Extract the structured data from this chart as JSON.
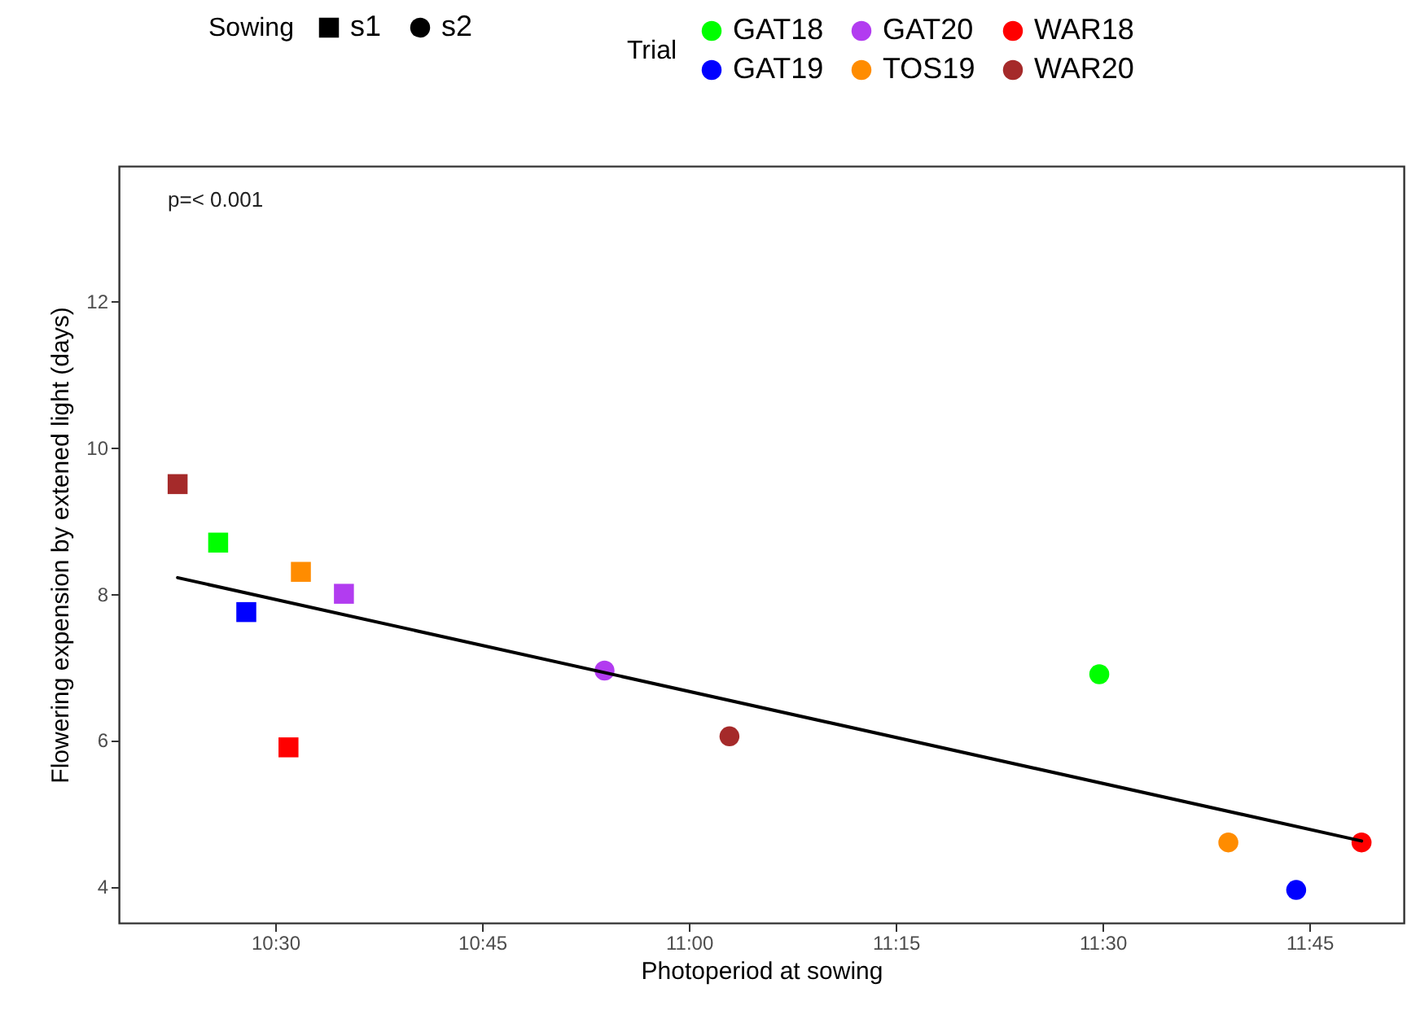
{
  "chart_data": {
    "type": "scatter",
    "xlabel": "Photoperiod at sowing",
    "ylabel": "Flowering expension by extened light (days)",
    "legend_title": [
      "Sowing",
      "Trial"
    ],
    "annotations": [
      "p=< 0.001"
    ],
    "xlim": [
      10.311,
      11.864
    ],
    "ylim": [
      3.5,
      13.85
    ],
    "xticks": [
      {
        "value": 10.5,
        "label": "10:30"
      },
      {
        "value": 10.75,
        "label": "10:45"
      },
      {
        "value": 11,
        "label": "11:00"
      },
      {
        "value": 11.25,
        "label": "11:15"
      },
      {
        "value": 11.5,
        "label": "11:30"
      },
      {
        "value": 11.75,
        "label": "11:45"
      }
    ],
    "yticks": [
      4,
      6,
      8,
      10,
      12
    ],
    "grid": false,
    "legend": "top",
    "series": [
      {
        "name": "s1",
        "marker": "square",
        "color": "#000000"
      },
      {
        "name": "s2",
        "marker": "circle",
        "color": "#000000"
      },
      {
        "name": "GAT18",
        "color": "#00ff00",
        "x": [
          10.431,
          11.496
        ],
        "values": [
          8.7,
          6.9
        ]
      },
      {
        "name": "GAT20",
        "color": "#b23cf0",
        "x": [
          10.583,
          10.898
        ],
        "values": [
          8.0,
          6.95
        ]
      },
      {
        "name": "WAR18",
        "color": "#ff0000",
        "x": [
          10.516,
          11.813
        ],
        "values": [
          5.9,
          4.6
        ]
      },
      {
        "name": "GAT19",
        "color": "#0000ff",
        "x": [
          10.465,
          11.734
        ],
        "values": [
          7.75,
          3.95
        ]
      },
      {
        "name": "TOS19",
        "color": "#ff8c00",
        "x": [
          10.531,
          11.652
        ],
        "values": [
          8.3,
          4.6
        ]
      },
      {
        "name": "WAR20",
        "color": "#a52a2a",
        "x": [
          10.382,
          11.049
        ],
        "values": [
          9.5,
          6.05
        ]
      },
      {
        "type": "line",
        "color": "#000000",
        "x": [
          10.382,
          11.813
        ],
        "values": [
          8.22,
          4.62
        ]
      }
    ]
  }
}
